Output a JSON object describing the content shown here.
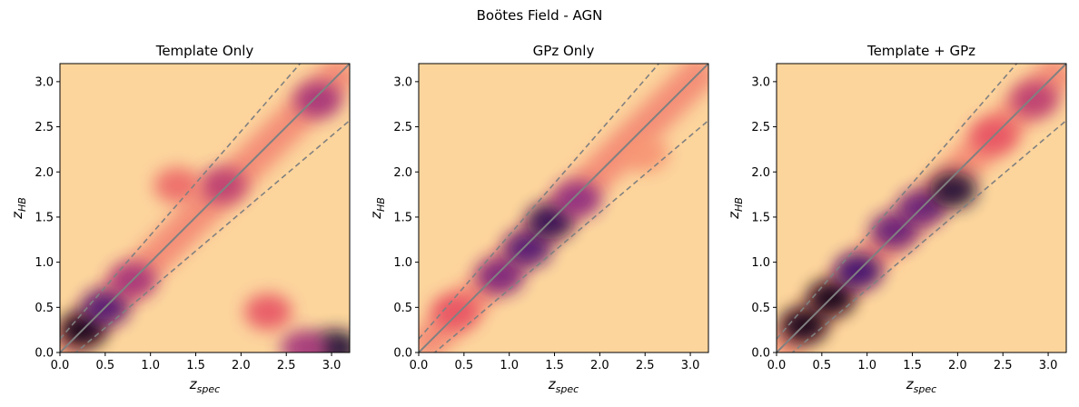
{
  "figure": {
    "suptitle": "Boötes Field - AGN"
  },
  "chart_data": [
    {
      "type": "heatmap",
      "title": "Template Only",
      "xlabel": "z",
      "xlabel_sub": "spec",
      "ylabel": "z",
      "ylabel_sub": "HB",
      "xlim": [
        0,
        3.2
      ],
      "ylim": [
        0,
        3.2
      ],
      "xticks": [
        "0.0",
        "0.5",
        "1.0",
        "1.5",
        "2.0",
        "2.5",
        "3.0"
      ],
      "yticks": [
        "0.0",
        "0.5",
        "1.0",
        "1.5",
        "2.0",
        "2.5",
        "3.0"
      ],
      "colormap": "magma_r",
      "reference_lines": {
        "one_to_one": true,
        "dashed_bounds": "±15% (1+z)"
      },
      "density_features": [
        {
          "x": 0.25,
          "y": 0.25,
          "strength": 1.0
        },
        {
          "x": 0.5,
          "y": 0.5,
          "strength": 0.8
        },
        {
          "x": 0.8,
          "y": 0.8,
          "strength": 0.6
        },
        {
          "x": 1.8,
          "y": 1.85,
          "strength": 0.55
        },
        {
          "x": 2.85,
          "y": 2.8,
          "strength": 0.6
        },
        {
          "x": 3.05,
          "y": 0.05,
          "strength": 0.95
        },
        {
          "x": 2.7,
          "y": 0.05,
          "strength": 0.6
        },
        {
          "x": 2.3,
          "y": 0.45,
          "strength": 0.45
        },
        {
          "x": 1.3,
          "y": 1.85,
          "strength": 0.4
        }
      ]
    },
    {
      "type": "heatmap",
      "title": "GPz Only",
      "xlabel": "z",
      "xlabel_sub": "spec",
      "ylabel": "z",
      "ylabel_sub": "HB",
      "xlim": [
        0,
        3.2
      ],
      "ylim": [
        0,
        3.2
      ],
      "xticks": [
        "0.0",
        "0.5",
        "1.0",
        "1.5",
        "2.0",
        "2.5",
        "3.0"
      ],
      "yticks": [
        "0.0",
        "0.5",
        "1.0",
        "1.5",
        "2.0",
        "2.5",
        "3.0"
      ],
      "colormap": "magma_r",
      "reference_lines": {
        "one_to_one": true,
        "dashed_bounds": "±15% (1+z)"
      },
      "density_features": [
        {
          "x": 0.9,
          "y": 0.85,
          "strength": 0.7
        },
        {
          "x": 1.2,
          "y": 1.15,
          "strength": 0.8
        },
        {
          "x": 1.45,
          "y": 1.45,
          "strength": 0.9
        },
        {
          "x": 1.75,
          "y": 1.7,
          "strength": 0.65
        },
        {
          "x": 0.4,
          "y": 0.45,
          "strength": 0.45
        },
        {
          "x": 2.5,
          "y": 2.2,
          "strength": 0.3
        }
      ]
    },
    {
      "type": "heatmap",
      "title": "Template + GPz",
      "xlabel": "z",
      "xlabel_sub": "spec",
      "ylabel": "z",
      "ylabel_sub": "HB",
      "xlim": [
        0,
        3.2
      ],
      "ylim": [
        0,
        3.2
      ],
      "xticks": [
        "0.0",
        "0.5",
        "1.0",
        "1.5",
        "2.0",
        "2.5",
        "3.0"
      ],
      "yticks": [
        "0.0",
        "0.5",
        "1.0",
        "1.5",
        "2.0",
        "2.5",
        "3.0"
      ],
      "colormap": "magma_r",
      "reference_lines": {
        "one_to_one": true,
        "dashed_bounds": "±15% (1+z)"
      },
      "density_features": [
        {
          "x": 0.3,
          "y": 0.3,
          "strength": 1.0
        },
        {
          "x": 0.6,
          "y": 0.6,
          "strength": 1.0
        },
        {
          "x": 0.9,
          "y": 0.9,
          "strength": 0.85
        },
        {
          "x": 1.3,
          "y": 1.35,
          "strength": 0.75
        },
        {
          "x": 1.6,
          "y": 1.6,
          "strength": 0.75
        },
        {
          "x": 1.95,
          "y": 1.8,
          "strength": 0.95
        },
        {
          "x": 2.4,
          "y": 2.4,
          "strength": 0.45
        },
        {
          "x": 2.85,
          "y": 2.8,
          "strength": 0.55
        }
      ]
    }
  ]
}
